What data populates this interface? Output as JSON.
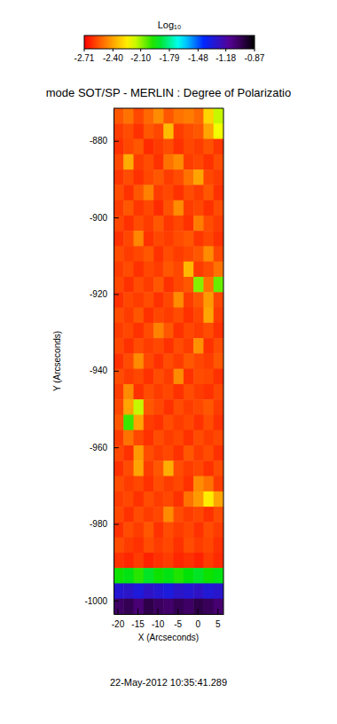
{
  "chart_data": {
    "type": "heatmap",
    "title": "mode SOT/SP - MERLIN : Degree of Polarizatio",
    "annotation": "22-May-2012 10:35:41.289",
    "x_label": "X (Arcseconds)",
    "y_label": "Y (Arcseconds)",
    "x": [
      -19.75,
      -17.25,
      -14.75,
      -12.25,
      -9.75,
      -7.25,
      -4.75,
      -2.25,
      0.25,
      2.75,
      5.25
    ],
    "y": [
      -873.5,
      -877.5,
      -881.5,
      -885.5,
      -889.5,
      -893.5,
      -897.5,
      -901.5,
      -905.5,
      -909.5,
      -913.5,
      -917.5,
      -921.5,
      -925.5,
      -929.5,
      -933.5,
      -937.5,
      -941.5,
      -945.5,
      -949.5,
      -953.5,
      -957.5,
      -961.5,
      -965.5,
      -969.5,
      -973.5,
      -977.5,
      -981.5,
      -985.5,
      -989.5,
      -993.5,
      -997.5,
      -1001.5
    ],
    "values": [
      [
        -2.55,
        -2.5,
        -2.58,
        -2.52,
        -2.45,
        -2.55,
        -2.5,
        -2.48,
        -2.52,
        -2.3,
        -2.15
      ],
      [
        -2.6,
        -2.57,
        -2.62,
        -2.55,
        -2.58,
        -2.35,
        -2.6,
        -2.57,
        -2.55,
        -2.4,
        -2.2
      ],
      [
        -2.62,
        -2.58,
        -2.55,
        -2.63,
        -2.6,
        -2.57,
        -2.62,
        -2.58,
        -2.6,
        -2.56,
        -2.61
      ],
      [
        -2.58,
        -2.38,
        -2.6,
        -2.57,
        -2.62,
        -2.5,
        -2.45,
        -2.6,
        -2.58,
        -2.62,
        -2.57
      ],
      [
        -2.61,
        -2.57,
        -2.62,
        -2.58,
        -2.55,
        -2.6,
        -2.57,
        -2.5,
        -2.4,
        -2.58,
        -2.6
      ],
      [
        -2.57,
        -2.62,
        -2.55,
        -2.47,
        -2.6,
        -2.58,
        -2.62,
        -2.57,
        -2.6,
        -2.55,
        -2.62
      ],
      [
        -2.6,
        -2.55,
        -2.61,
        -2.58,
        -2.63,
        -2.56,
        -2.45,
        -2.6,
        -2.58,
        -2.62,
        -2.57
      ],
      [
        -2.58,
        -2.62,
        -2.57,
        -2.6,
        -2.55,
        -2.61,
        -2.58,
        -2.62,
        -2.48,
        -2.57,
        -2.6
      ],
      [
        -2.62,
        -2.58,
        -2.46,
        -2.62,
        -2.58,
        -2.6,
        -2.57,
        -2.55,
        -2.61,
        -2.58,
        -2.62
      ],
      [
        -2.57,
        -2.6,
        -2.58,
        -2.55,
        -2.62,
        -2.57,
        -2.6,
        -2.58,
        -2.55,
        -2.45,
        -2.58
      ],
      [
        -2.6,
        -2.57,
        -2.62,
        -2.58,
        -2.6,
        -2.55,
        -2.58,
        -2.36,
        -2.6,
        -2.57,
        -2.5
      ],
      [
        -2.58,
        -2.62,
        -2.57,
        -2.6,
        -2.55,
        -2.62,
        -2.58,
        -2.55,
        -2.08,
        -2.5,
        -2.05
      ],
      [
        -2.62,
        -2.58,
        -2.6,
        -2.57,
        -2.62,
        -2.58,
        -2.45,
        -2.6,
        -2.55,
        -2.42,
        -2.58
      ],
      [
        -2.57,
        -2.6,
        -2.55,
        -2.62,
        -2.58,
        -2.6,
        -2.57,
        -2.62,
        -2.58,
        -2.4,
        -2.6
      ],
      [
        -2.6,
        -2.58,
        -2.62,
        -2.57,
        -2.47,
        -2.55,
        -2.62,
        -2.58,
        -2.6,
        -2.57,
        -2.62
      ],
      [
        -2.58,
        -2.62,
        -2.57,
        -2.6,
        -2.58,
        -2.62,
        -2.57,
        -2.6,
        -2.44,
        -2.62,
        -2.57
      ],
      [
        -2.62,
        -2.57,
        -2.45,
        -2.58,
        -2.62,
        -2.57,
        -2.6,
        -2.55,
        -2.58,
        -2.6,
        -2.55
      ],
      [
        -2.57,
        -2.6,
        -2.58,
        -2.62,
        -2.57,
        -2.6,
        -2.45,
        -2.62,
        -2.57,
        -2.58,
        -2.62
      ],
      [
        -2.6,
        -2.45,
        -2.62,
        -2.57,
        -2.6,
        -2.58,
        -2.62,
        -2.57,
        -2.6,
        -2.62,
        -2.58
      ],
      [
        -2.58,
        -2.4,
        -2.15,
        -2.55,
        -2.58,
        -2.62,
        -2.57,
        -2.6,
        -2.58,
        -2.55,
        -2.6
      ],
      [
        -2.55,
        -2.0,
        -2.4,
        -2.6,
        -2.62,
        -2.57,
        -2.6,
        -2.58,
        -2.62,
        -2.57,
        -2.62
      ],
      [
        -2.6,
        -2.5,
        -2.58,
        -2.62,
        -2.57,
        -2.6,
        -2.58,
        -2.62,
        -2.57,
        -2.6,
        -2.58
      ],
      [
        -2.58,
        -2.62,
        -2.42,
        -2.57,
        -2.6,
        -2.58,
        -2.62,
        -2.55,
        -2.6,
        -2.57,
        -2.62
      ],
      [
        -2.62,
        -2.57,
        -2.4,
        -2.6,
        -2.55,
        -2.38,
        -2.57,
        -2.6,
        -2.58,
        -2.62,
        -2.57
      ],
      [
        -2.57,
        -2.6,
        -2.58,
        -2.62,
        -2.57,
        -2.6,
        -2.58,
        -2.62,
        -2.45,
        -2.5,
        -2.6
      ],
      [
        -2.6,
        -2.58,
        -2.62,
        -2.57,
        -2.6,
        -2.58,
        -2.62,
        -2.5,
        -2.42,
        -2.25,
        -2.4
      ],
      [
        -2.58,
        -2.62,
        -2.57,
        -2.6,
        -2.58,
        -2.45,
        -2.57,
        -2.6,
        -2.58,
        -2.62,
        -2.57
      ],
      [
        -2.62,
        -2.57,
        -2.6,
        -2.55,
        -2.62,
        -2.57,
        -2.6,
        -2.58,
        -2.62,
        -2.57,
        -2.6
      ],
      [
        -2.57,
        -2.6,
        -2.62,
        -2.57,
        -2.6,
        -2.58,
        -2.62,
        -2.57,
        -2.6,
        -2.58,
        -2.62
      ],
      [
        -2.62,
        -2.64,
        -2.6,
        -2.65,
        -2.62,
        -2.6,
        -2.64,
        -2.62,
        -2.65,
        -2.6,
        -2.63
      ],
      [
        -1.95,
        -1.92,
        -1.98,
        -1.9,
        -1.95,
        -1.92,
        -1.97,
        -1.93,
        -1.9,
        -1.95,
        -1.92
      ],
      [
        -1.3,
        -1.28,
        -1.32,
        -1.27,
        -1.3,
        -1.33,
        -1.28,
        -1.3,
        -1.27,
        -1.31,
        -1.29
      ],
      [
        -1.05,
        -1.02,
        -1.08,
        -1.0,
        -1.04,
        -1.06,
        -1.02,
        -1.05,
        -1.0,
        -1.03,
        -1.07
      ]
    ],
    "xlim": [
      -21,
      6.5
    ],
    "ylim": [
      -1003.5,
      -871.5
    ],
    "xticks": [
      -20,
      -15,
      -10,
      -5,
      0,
      5
    ],
    "yticks": [
      -880,
      -900,
      -920,
      -940,
      -960,
      -980,
      -1000
    ],
    "colorbar": {
      "label": "Log₁₀",
      "range": [
        -2.71,
        -0.87
      ],
      "ticks": [
        -2.71,
        {
          "value": -2.4,
          "label": "-2.40"
        },
        {
          "value": -2.1,
          "label": "-2.10"
        },
        -1.79,
        -1.48,
        -1.18,
        -0.87
      ]
    }
  }
}
